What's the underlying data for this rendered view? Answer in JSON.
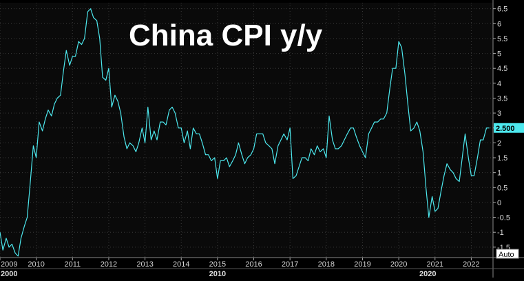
{
  "chart_data": {
    "type": "line",
    "title": "China CPI y/y",
    "xlabel": "",
    "ylabel": "",
    "ylim": [
      -1.85,
      6.7
    ],
    "xlim": [
      2009.0,
      2022.6
    ],
    "y_ticks": [
      "6.5",
      "6",
      "5.5",
      "5",
      "4.5",
      "4",
      "3.5",
      "3",
      "2.5",
      "2",
      "1.5",
      "1",
      "0.5",
      "0",
      "-0.5",
      "-1",
      "-1.5"
    ],
    "x_ticks": [
      {
        "x": 2009.0,
        "label": "2009"
      },
      {
        "x": 2010.0,
        "label": "2010"
      },
      {
        "x": 2011.0,
        "label": "2011"
      },
      {
        "x": 2012.0,
        "label": "2012"
      },
      {
        "x": 2013.0,
        "label": "2013"
      },
      {
        "x": 2014.0,
        "label": "2014"
      },
      {
        "x": 2015.0,
        "label": "2015"
      },
      {
        "x": 2016.0,
        "label": "2016"
      },
      {
        "x": 2017.0,
        "label": "2017"
      },
      {
        "x": 2018.0,
        "label": "2018"
      },
      {
        "x": 2019.0,
        "label": "2019"
      },
      {
        "x": 2020.0,
        "label": "2020"
      },
      {
        "x": 2021.0,
        "label": "2021"
      },
      {
        "x": 2022.0,
        "label": "2022"
      }
    ],
    "decade_labels": [
      {
        "x": 2009.0,
        "label": "2000"
      },
      {
        "x": 2015.0,
        "label": "2010"
      },
      {
        "x": 2020.8,
        "label": "2020"
      }
    ],
    "last_value_label": "2.500",
    "auto_label": "Auto",
    "grid": true,
    "colors": {
      "line": "#4de8ee",
      "background": "#000000",
      "grid": "#3a3a3a",
      "badge": "#4de8ee"
    },
    "series": [
      {
        "x": [
          2009.0,
          2009.08,
          2009.17,
          2009.25,
          2009.33,
          2009.42,
          2009.5,
          2009.58,
          2009.67,
          2009.75,
          2009.83,
          2009.92,
          2010.0,
          2010.08,
          2010.17,
          2010.25,
          2010.33,
          2010.42,
          2010.5,
          2010.58,
          2010.67,
          2010.75,
          2010.83,
          2010.92,
          2011.0,
          2011.08,
          2011.17,
          2011.25,
          2011.33,
          2011.42,
          2011.5,
          2011.58,
          2011.67,
          2011.75,
          2011.83,
          2011.92,
          2012.0,
          2012.08,
          2012.17,
          2012.25,
          2012.33,
          2012.42,
          2012.5,
          2012.58,
          2012.67,
          2012.75,
          2012.83,
          2012.92,
          2013.0,
          2013.08,
          2013.17,
          2013.25,
          2013.33,
          2013.42,
          2013.5,
          2013.58,
          2013.67,
          2013.75,
          2013.83,
          2013.92,
          2014.0,
          2014.08,
          2014.17,
          2014.25,
          2014.33,
          2014.42,
          2014.5,
          2014.58,
          2014.67,
          2014.75,
          2014.83,
          2014.92,
          2015.0,
          2015.08,
          2015.17,
          2015.25,
          2015.33,
          2015.42,
          2015.5,
          2015.58,
          2015.67,
          2015.75,
          2015.83,
          2015.92,
          2016.0,
          2016.08,
          2016.17,
          2016.25,
          2016.33,
          2016.42,
          2016.5,
          2016.58,
          2016.67,
          2016.75,
          2016.83,
          2016.92,
          2017.0,
          2017.08,
          2017.17,
          2017.25,
          2017.33,
          2017.42,
          2017.5,
          2017.58,
          2017.67,
          2017.75,
          2017.83,
          2017.92,
          2018.0,
          2018.08,
          2018.17,
          2018.25,
          2018.33,
          2018.42,
          2018.5,
          2018.58,
          2018.67,
          2018.75,
          2018.83,
          2018.92,
          2019.0,
          2019.08,
          2019.17,
          2019.25,
          2019.33,
          2019.42,
          2019.5,
          2019.58,
          2019.67,
          2019.75,
          2019.83,
          2019.92,
          2020.0,
          2020.08,
          2020.17,
          2020.25,
          2020.33,
          2020.42,
          2020.5,
          2020.58,
          2020.67,
          2020.75,
          2020.83,
          2020.92,
          2021.0,
          2021.08,
          2021.17,
          2021.25,
          2021.33,
          2021.42,
          2021.5,
          2021.58,
          2021.67,
          2021.75,
          2021.83,
          2021.92,
          2022.0,
          2022.08,
          2022.17,
          2022.25,
          2022.33,
          2022.42,
          2022.5
        ],
        "values": [
          -1.0,
          -1.6,
          -1.2,
          -1.5,
          -1.4,
          -1.7,
          -1.8,
          -1.2,
          -0.8,
          -0.5,
          0.6,
          1.9,
          1.5,
          2.7,
          2.4,
          2.8,
          3.1,
          2.9,
          3.3,
          3.5,
          3.6,
          4.4,
          5.1,
          4.6,
          4.9,
          4.9,
          5.4,
          5.3,
          5.5,
          6.4,
          6.5,
          6.2,
          6.1,
          5.5,
          4.2,
          4.1,
          4.5,
          3.2,
          3.6,
          3.4,
          3.0,
          2.2,
          1.8,
          2.0,
          1.9,
          1.7,
          2.0,
          2.5,
          2.0,
          3.2,
          2.1,
          2.4,
          2.1,
          2.7,
          2.7,
          2.6,
          3.1,
          3.2,
          3.0,
          2.5,
          2.5,
          2.0,
          2.4,
          1.8,
          2.5,
          2.3,
          2.3,
          2.0,
          1.6,
          1.6,
          1.4,
          1.5,
          0.8,
          1.4,
          1.4,
          1.5,
          1.2,
          1.4,
          1.6,
          2.0,
          1.6,
          1.3,
          1.5,
          1.6,
          1.8,
          2.3,
          2.3,
          2.3,
          2.0,
          1.9,
          1.8,
          1.3,
          1.9,
          2.1,
          2.3,
          2.1,
          2.5,
          0.8,
          0.9,
          1.2,
          1.5,
          1.5,
          1.4,
          1.8,
          1.6,
          1.9,
          1.7,
          1.8,
          1.5,
          2.9,
          2.1,
          1.8,
          1.8,
          1.9,
          2.1,
          2.3,
          2.5,
          2.5,
          2.2,
          1.9,
          1.7,
          1.5,
          2.3,
          2.5,
          2.7,
          2.7,
          2.8,
          2.8,
          3.0,
          3.8,
          4.5,
          4.5,
          5.4,
          5.2,
          4.3,
          3.3,
          2.4,
          2.5,
          2.7,
          2.4,
          1.7,
          0.5,
          -0.5,
          0.2,
          -0.3,
          -0.2,
          0.4,
          0.9,
          1.3,
          1.1,
          1.0,
          0.8,
          0.7,
          1.5,
          2.3,
          1.5,
          0.9,
          0.9,
          1.5,
          2.1,
          2.1,
          2.5,
          2.5
        ]
      }
    ]
  }
}
